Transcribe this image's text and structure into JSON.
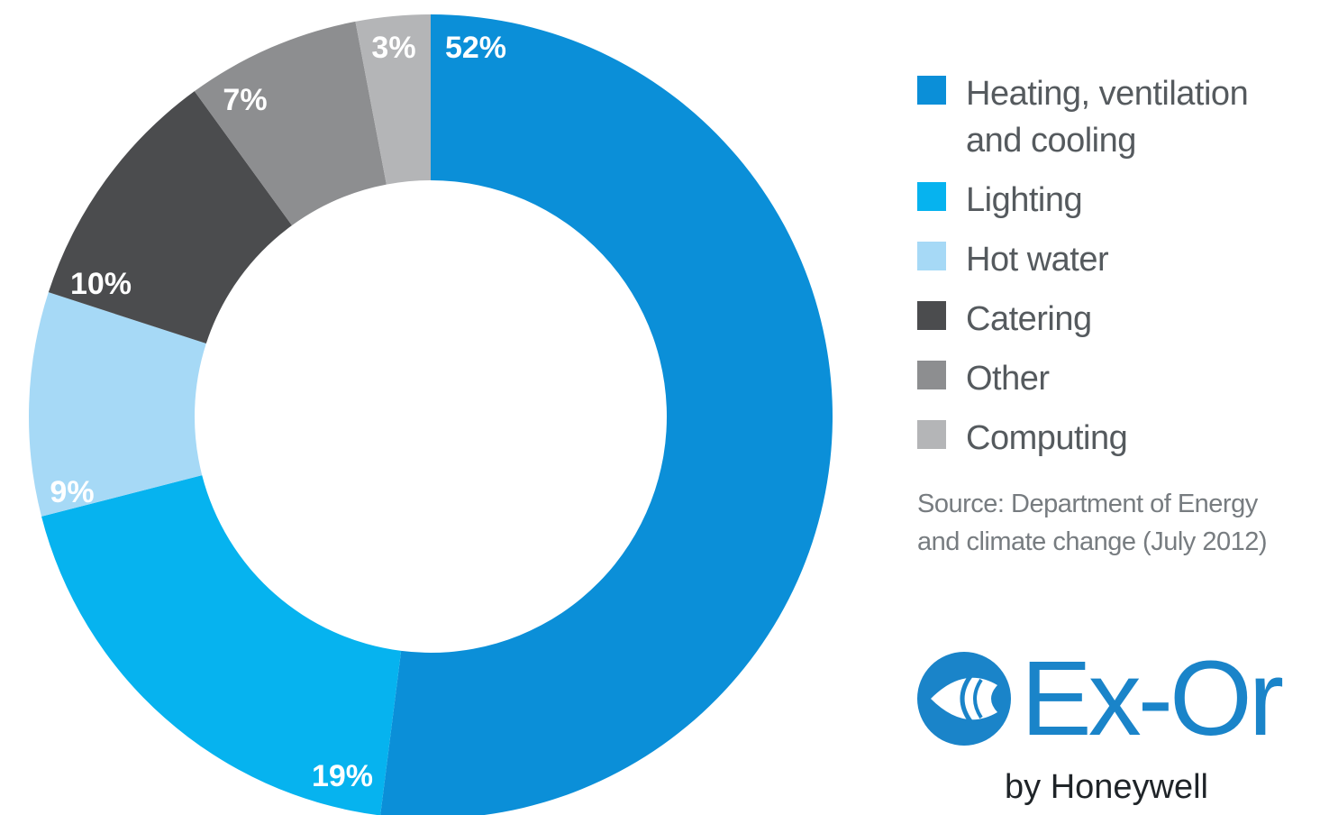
{
  "chart_data": {
    "type": "pie",
    "donut": true,
    "slices": [
      {
        "name": "Heating, ventilation and cooling",
        "value": 52,
        "label": "52%",
        "color": "#0b8fd8"
      },
      {
        "name": "Lighting",
        "value": 19,
        "label": "19%",
        "color": "#06b3ef"
      },
      {
        "name": "Hot water",
        "value": 9,
        "label": "9%",
        "color": "#a6d9f6"
      },
      {
        "name": "Catering",
        "value": 10,
        "label": "10%",
        "color": "#4b4c4e"
      },
      {
        "name": "Other",
        "value": 7,
        "label": "7%",
        "color": "#8d8e90"
      },
      {
        "name": "Computing",
        "value": 3,
        "label": "3%",
        "color": "#b4b5b7"
      }
    ],
    "legend_position": "right"
  },
  "legend": {
    "items": [
      {
        "label": "Heating, ventilation and cooling",
        "color": "#0b8fd8"
      },
      {
        "label": "Lighting",
        "color": "#06b3ef"
      },
      {
        "label": "Hot water",
        "color": "#a6d9f6"
      },
      {
        "label": "Catering",
        "color": "#4b4c4e"
      },
      {
        "label": "Other",
        "color": "#8d8e90"
      },
      {
        "label": "Computing",
        "color": "#b4b5b7"
      }
    ]
  },
  "source": "Source: Department of Energy\nand climate change (July 2012)",
  "brand": {
    "name": "Ex-Or",
    "sub": "by Honeywell",
    "color": "#1a84c9",
    "icon": "ex-or-logo-icon"
  }
}
